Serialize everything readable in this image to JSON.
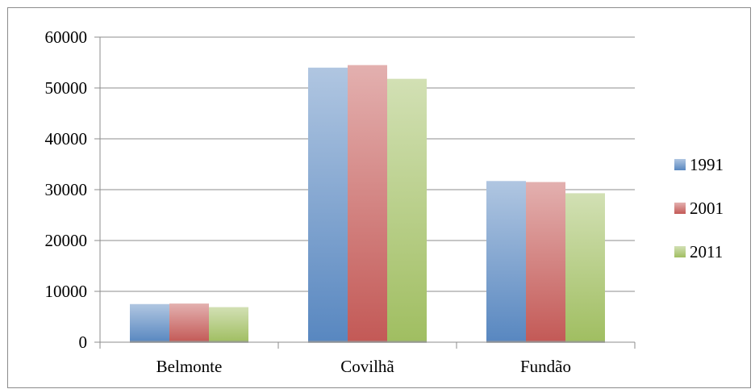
{
  "chart_data": {
    "type": "bar",
    "title": "",
    "xlabel": "",
    "ylabel": "",
    "categories": [
      "Belmonte",
      "Covilhã",
      "Fundão"
    ],
    "series": [
      {
        "name": "1991",
        "color": "#4f81bd",
        "values": [
          7500,
          54000,
          31700
        ]
      },
      {
        "name": "2001",
        "color": "#c0504d",
        "values": [
          7600,
          54500,
          31500
        ]
      },
      {
        "name": "2011",
        "color": "#9bbb59",
        "values": [
          6900,
          51800,
          29300
        ]
      }
    ],
    "ylim": [
      0,
      60000
    ],
    "yticks": [
      0,
      10000,
      20000,
      30000,
      40000,
      50000,
      60000
    ],
    "ytick_labels": [
      "0",
      "10000",
      "20000",
      "30000",
      "40000",
      "50000",
      "60000"
    ],
    "grid": true,
    "legend_position": "right"
  }
}
